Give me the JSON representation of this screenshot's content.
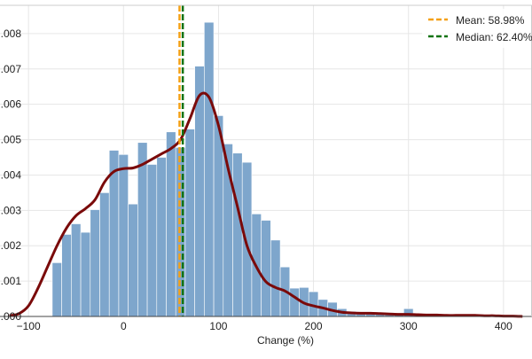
{
  "chart_data": {
    "type": "bar",
    "title": "",
    "xlabel": "Change (%)",
    "ylabel": "",
    "xlim": [
      -130,
      430
    ],
    "ylim": [
      0,
      0.0088
    ],
    "xticks": [
      -100,
      0,
      100,
      200,
      300,
      400
    ],
    "xtick_labels": [
      "−100",
      "0",
      "100",
      "200",
      "300",
      "400"
    ],
    "yticks": [
      0,
      0.001,
      0.002,
      0.003,
      0.004,
      0.005,
      0.006,
      0.007,
      0.008
    ],
    "ytick_labels": [
      ".000",
      ".001",
      ".002",
      ".003",
      ".004",
      ".005",
      ".006",
      ".007",
      ".008"
    ],
    "grid": true,
    "legend_position": "top-right",
    "colors": {
      "bars": "#7ea6cc",
      "bar_edge": "#ffffff",
      "kde": "#7a0a0a",
      "mean": "#f5a014",
      "median": "#127312",
      "grid": "#e6e6e6"
    },
    "histogram": {
      "bin_edges": [
        -75,
        -65,
        -55,
        -45,
        -35,
        -25,
        -15,
        -5,
        5,
        15,
        25,
        35,
        45,
        55,
        65,
        75,
        85,
        95,
        105,
        115,
        125,
        135,
        145,
        155,
        165,
        175,
        185,
        195,
        205,
        215,
        225,
        235,
        245,
        255,
        265,
        275,
        285,
        295,
        305,
        315,
        325,
        335,
        345,
        355,
        365,
        375,
        385,
        395,
        405
      ],
      "density": [
        0.00152,
        0.00232,
        0.00262,
        0.00238,
        0.00302,
        0.0035,
        0.0047,
        0.00458,
        0.00318,
        0.00492,
        0.0043,
        0.0045,
        0.00522,
        0.00478,
        0.0053,
        0.00708,
        0.00832,
        0.00568,
        0.00488,
        0.00462,
        0.00436,
        0.0029,
        0.00272,
        0.00216,
        0.0014,
        0.0008,
        0.00082,
        0.0007,
        0.00048,
        0.0004,
        0.00022,
        0.00014,
        0.00012,
        0.00011,
        9e-05,
        5e-05,
        4e-05,
        0.00022,
        3e-05,
        2e-05,
        2e-05,
        1e-05,
        1e-05,
        1e-05,
        1e-05,
        1e-05,
        1e-05,
        1e-05
      ]
    },
    "kde": {
      "x": [
        -120,
        -110,
        -100,
        -90,
        -80,
        -70,
        -60,
        -50,
        -40,
        -30,
        -20,
        -10,
        0,
        10,
        20,
        30,
        40,
        50,
        60,
        70,
        80,
        90,
        100,
        110,
        120,
        130,
        140,
        150,
        160,
        170,
        180,
        190,
        200,
        210,
        220,
        230,
        240,
        250,
        260,
        270,
        280,
        290,
        300,
        310,
        320,
        330,
        340,
        350,
        360,
        370,
        380,
        390,
        400,
        410,
        420
      ],
      "y": [
        2e-05,
        8e-05,
        0.0003,
        0.0008,
        0.0014,
        0.002,
        0.0025,
        0.00285,
        0.00305,
        0.0033,
        0.0038,
        0.0041,
        0.00418,
        0.0042,
        0.0043,
        0.00445,
        0.0046,
        0.00475,
        0.005,
        0.0056,
        0.00625,
        0.0062,
        0.0054,
        0.0042,
        0.0031,
        0.002,
        0.0014,
        0.00098,
        0.00082,
        0.00072,
        0.00055,
        0.00038,
        0.0003,
        0.00024,
        0.00017,
        0.00012,
        0.0001,
        9e-05,
        9e-05,
        8e-05,
        7e-05,
        6e-05,
        6e-05,
        5e-05,
        4e-05,
        4e-05,
        3e-05,
        3e-05,
        3e-05,
        3e-05,
        2e-05,
        2e-05,
        1e-05,
        1e-05,
        0.0
      ]
    },
    "mean": {
      "value": 58.98,
      "label": "Mean: 58.98%"
    },
    "median": {
      "value": 62.4,
      "label": "Median: 62.40%"
    }
  }
}
